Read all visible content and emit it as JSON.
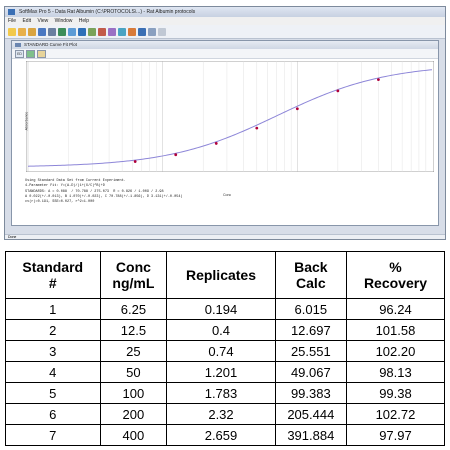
{
  "app": {
    "title": "SoftMax Pro 5 - Data Rat Albumin (C:\\PROTOCOLS\\...) - Rat Albumin protocols",
    "menu": [
      "File",
      "Edit",
      "View",
      "Window",
      "Help"
    ]
  },
  "plot_window": {
    "title": "STANDARD Curve Fit Plot",
    "tool_labels": [
      "ED"
    ],
    "y_axis_label": "Absorbance",
    "x_axis_label": "Conc",
    "x_ticks": [
      "1",
      "10",
      "100",
      "1000"
    ]
  },
  "info_lines": [
    "Using Standard Data Set from Current Experiment.",
    "4-Parameter Fit: Y=(A-D)/(1+(X/C)^B)+D",
    "STANDARDS: A = 0.088  / 70.788 / 275.073  R = 0.826 / 1.009 / 2.98",
    "A 0.022(+/-0.013), B 1.070(+/-0.023), C 70.788(+/-1.856), D 3.131(+/-0.054)",
    "cv(r)=0.191, SSE=0.027, r^2=1.000"
  ],
  "status_text": "Done",
  "chart_data": {
    "type": "scatter",
    "x_scale": "log",
    "xlim": [
      1,
      1000
    ],
    "ylim": [
      0,
      3.1
    ],
    "x": [
      6.25,
      12.5,
      25,
      50,
      100,
      200,
      400
    ],
    "y": [
      0.194,
      0.4,
      0.74,
      1.201,
      1.783,
      2.32,
      2.659
    ],
    "fit": {
      "model": "4PL",
      "A": 0.022,
      "B": 1.07,
      "C": 70.788,
      "D": 3.131
    },
    "point_color": "#b0003a",
    "curve_color": "#8d86d8"
  },
  "table": {
    "headers": [
      [
        "Standard",
        "#"
      ],
      [
        "Conc",
        "ng/mL"
      ],
      [
        "Replicates"
      ],
      [
        "Back",
        "Calc"
      ],
      [
        "%",
        "Recovery"
      ]
    ],
    "rows": [
      [
        "1",
        "6.25",
        "0.194",
        "6.015",
        "96.24"
      ],
      [
        "2",
        "12.5",
        "0.4",
        "12.697",
        "101.58"
      ],
      [
        "3",
        "25",
        "0.74",
        "25.551",
        "102.20"
      ],
      [
        "4",
        "50",
        "1.201",
        "49.067",
        "98.13"
      ],
      [
        "5",
        "100",
        "1.783",
        "99.383",
        "99.38"
      ],
      [
        "6",
        "200",
        "2.32",
        "205.444",
        "102.72"
      ],
      [
        "7",
        "400",
        "2.659",
        "391.884",
        "97.97"
      ]
    ]
  }
}
